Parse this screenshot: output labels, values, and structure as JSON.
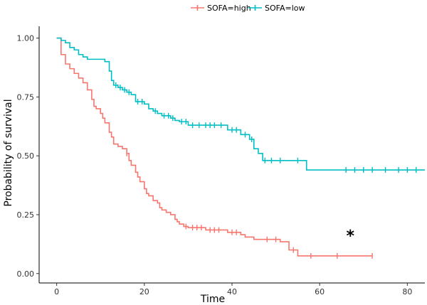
{
  "chart_data": {
    "type": "line",
    "subtype": "kaplan-meier step curve with censoring marks",
    "xlabel": "Time",
    "ylabel": "Probability of survival",
    "xlim": [
      -4,
      84
    ],
    "ylim": [
      -0.04,
      1.05
    ],
    "x_ticks": [
      0,
      20,
      40,
      60,
      80
    ],
    "y_ticks": [
      0.0,
      0.25,
      0.5,
      0.75,
      1.0
    ],
    "x_tick_labels": [
      "0",
      "20",
      "40",
      "60",
      "80"
    ],
    "y_tick_labels": [
      "0.00",
      "0.25",
      "0.50",
      "0.75",
      "1.00"
    ],
    "grid": false,
    "legend_position": "top",
    "annotation": {
      "text": "*",
      "x": 67,
      "y": 0.18
    },
    "series": [
      {
        "name": "SOFA=high",
        "color": "#F8766D",
        "steps": [
          [
            0,
            1.0
          ],
          [
            1,
            0.93
          ],
          [
            2,
            0.89
          ],
          [
            3,
            0.87
          ],
          [
            4,
            0.85
          ],
          [
            5,
            0.83
          ],
          [
            6,
            0.81
          ],
          [
            7,
            0.78
          ],
          [
            8,
            0.74
          ],
          [
            8.5,
            0.71
          ],
          [
            9,
            0.7
          ],
          [
            10,
            0.68
          ],
          [
            10.5,
            0.66
          ],
          [
            11,
            0.64
          ],
          [
            12,
            0.6
          ],
          [
            12.5,
            0.58
          ],
          [
            13,
            0.55
          ],
          [
            14,
            0.54
          ],
          [
            15,
            0.53
          ],
          [
            16,
            0.51
          ],
          [
            16.5,
            0.48
          ],
          [
            17,
            0.46
          ],
          [
            18,
            0.43
          ],
          [
            18.5,
            0.41
          ],
          [
            19,
            0.39
          ],
          [
            20,
            0.36
          ],
          [
            20.5,
            0.34
          ],
          [
            21,
            0.33
          ],
          [
            22,
            0.31
          ],
          [
            23,
            0.3
          ],
          [
            23.5,
            0.28
          ],
          [
            24,
            0.27
          ],
          [
            25,
            0.26
          ],
          [
            26,
            0.25
          ],
          [
            27,
            0.23
          ],
          [
            27.5,
            0.22
          ],
          [
            28,
            0.21
          ],
          [
            29,
            0.2
          ],
          [
            30,
            0.195
          ],
          [
            34,
            0.185
          ],
          [
            39,
            0.175
          ],
          [
            42,
            0.165
          ],
          [
            43,
            0.155
          ],
          [
            45,
            0.145
          ],
          [
            51,
            0.135
          ],
          [
            53,
            0.1
          ],
          [
            55,
            0.075
          ],
          [
            72,
            0.075
          ]
        ],
        "censor_x": [
          16,
          29.5,
          31,
          32,
          33,
          35,
          36,
          37,
          40,
          41,
          48,
          50,
          54,
          58,
          64,
          72
        ]
      },
      {
        "name": "SOFA=low",
        "color": "#00BFC4",
        "steps": [
          [
            0,
            1.0
          ],
          [
            1,
            0.99
          ],
          [
            2,
            0.98
          ],
          [
            3,
            0.96
          ],
          [
            4,
            0.95
          ],
          [
            5,
            0.93
          ],
          [
            6,
            0.92
          ],
          [
            7,
            0.91
          ],
          [
            11,
            0.9
          ],
          [
            12,
            0.86
          ],
          [
            12.5,
            0.82
          ],
          [
            13,
            0.8
          ],
          [
            14,
            0.79
          ],
          [
            15,
            0.78
          ],
          [
            16,
            0.77
          ],
          [
            17,
            0.76
          ],
          [
            18,
            0.73
          ],
          [
            20,
            0.72
          ],
          [
            21,
            0.7
          ],
          [
            22,
            0.69
          ],
          [
            23,
            0.68
          ],
          [
            24,
            0.67
          ],
          [
            26,
            0.66
          ],
          [
            27,
            0.65
          ],
          [
            28,
            0.645
          ],
          [
            30,
            0.63
          ],
          [
            39,
            0.61
          ],
          [
            42,
            0.59
          ],
          [
            44,
            0.57
          ],
          [
            45,
            0.53
          ],
          [
            46,
            0.51
          ],
          [
            47,
            0.48
          ],
          [
            57,
            0.44
          ],
          [
            84,
            0.44
          ]
        ],
        "censor_x": [
          13.5,
          14.5,
          15.5,
          16.5,
          18.5,
          19.5,
          22.5,
          24.5,
          25.5,
          26.5,
          28.5,
          29.5,
          31,
          32.5,
          34,
          35,
          36,
          37.5,
          40,
          41,
          43,
          44.5,
          47.5,
          49,
          51,
          55,
          66,
          68,
          70,
          72,
          75,
          78,
          80,
          82
        ]
      }
    ]
  }
}
